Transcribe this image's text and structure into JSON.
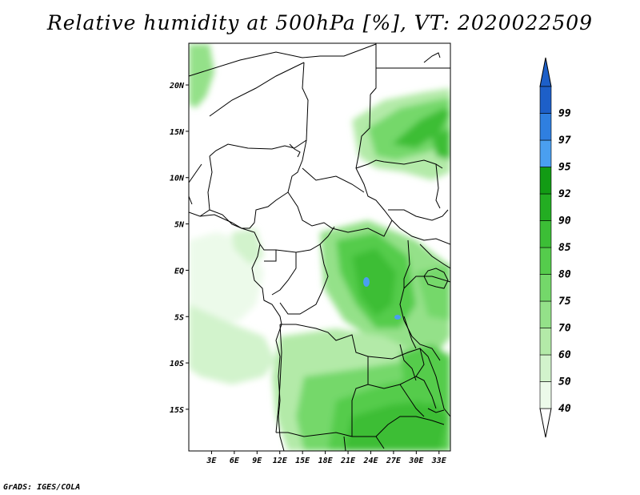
{
  "title": "Relative humidity at 500hPa [%], VT: 2020022509",
  "credit": "GrADS: IGES/COLA",
  "map": {
    "lon_range": [
      0,
      34.5
    ],
    "lat_range": [
      -19.5,
      24.5
    ],
    "lat_ticks": [
      {
        "value": 20,
        "label": "20N"
      },
      {
        "value": 15,
        "label": "15N"
      },
      {
        "value": 10,
        "label": "10N"
      },
      {
        "value": 5,
        "label": "5N"
      },
      {
        "value": 0,
        "label": "EQ"
      },
      {
        "value": -5,
        "label": "5S"
      },
      {
        "value": -10,
        "label": "10S"
      },
      {
        "value": -15,
        "label": "15S"
      }
    ],
    "lon_ticks": [
      {
        "value": 3,
        "label": "3E"
      },
      {
        "value": 6,
        "label": "6E"
      },
      {
        "value": 9,
        "label": "9E"
      },
      {
        "value": 12,
        "label": "12E"
      },
      {
        "value": 15,
        "label": "15E"
      },
      {
        "value": 18,
        "label": "18E"
      },
      {
        "value": 21,
        "label": "21E"
      },
      {
        "value": 24,
        "label": "24E"
      },
      {
        "value": 27,
        "label": "27E"
      },
      {
        "value": 30,
        "label": "30E"
      },
      {
        "value": 33,
        "label": "33E"
      }
    ]
  },
  "colorbar": {
    "levels": [
      {
        "label": "40",
        "color": "#ecfaea"
      },
      {
        "label": "50",
        "color": "#d2f3cc"
      },
      {
        "label": "60",
        "color": "#b3eaa8"
      },
      {
        "label": "70",
        "color": "#94e189"
      },
      {
        "label": "75",
        "color": "#74d86a"
      },
      {
        "label": "80",
        "color": "#55cc4c"
      },
      {
        "label": "85",
        "color": "#3cbe36"
      },
      {
        "label": "90",
        "color": "#23ad22"
      },
      {
        "label": "92",
        "color": "#129b14"
      },
      {
        "label": "95",
        "color": "#4a9ff0"
      },
      {
        "label": "97",
        "color": "#2f7fe0"
      },
      {
        "label": "99",
        "color": "#1d5fc8"
      }
    ],
    "below_color": "#ffffff",
    "above_color": "#1d5fc8"
  }
}
